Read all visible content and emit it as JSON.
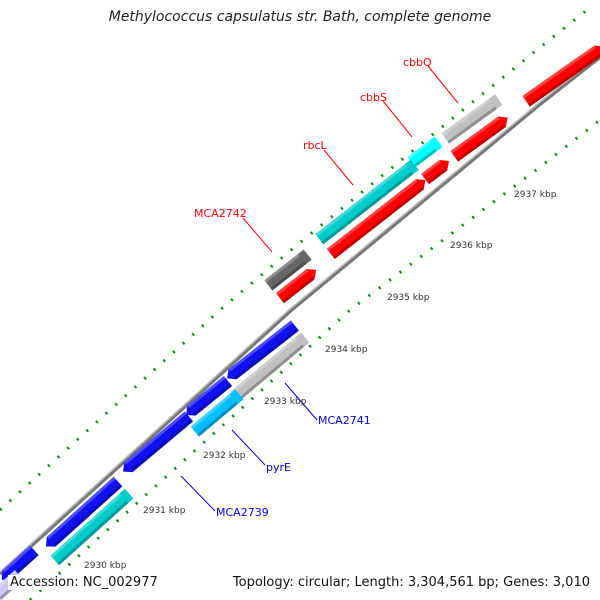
{
  "title": "Methylococcus capsulatus str. Bath, complete genome",
  "footer": {
    "accession": "Accession: NC_002977",
    "topology": "Topology: circular; Length: 3,304,561 bp; Genes: 3,010"
  },
  "colors": {
    "forward_strand": "#ff0000",
    "reverse_strand": "#1010f0",
    "backbone": "#888888",
    "ticks": "#118811",
    "forward_label": "#ff0000",
    "reverse_label": "#0000ee"
  },
  "gene_labels": {
    "cbbQ": "cbbQ",
    "cbbS": "cbbS",
    "rbcL": "rbcL",
    "MCA2742": "MCA2742",
    "MCA2741": "MCA2741",
    "pyrE": "pyrE",
    "MCA2739": "MCA2739"
  },
  "kbp_labels": [
    "2930 kbp",
    "2931 kbp",
    "2932 kbp",
    "2933 kbp",
    "2934 kbp",
    "2935 kbp",
    "2936 kbp",
    "2937 kbp"
  ]
}
